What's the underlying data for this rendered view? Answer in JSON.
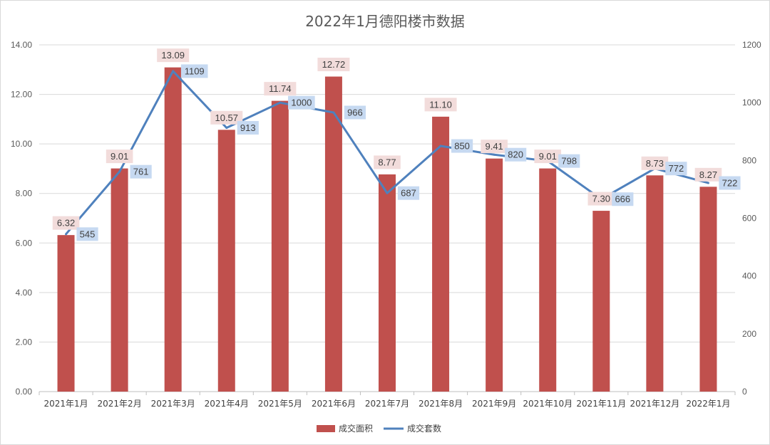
{
  "chart_data": {
    "type": "bar",
    "title": "2022年1月德阳楼市数据",
    "categories": [
      "2021年1月",
      "2021年2月",
      "2021年3月",
      "2021年4月",
      "2021年5月",
      "2021年6月",
      "2021年7月",
      "2021年8月",
      "2021年9月",
      "2021年10月",
      "2021年11月",
      "2021年12月",
      "2022年1月"
    ],
    "series": [
      {
        "name": "成交面积",
        "kind": "bar",
        "axis": "left",
        "color": "#c0504d",
        "label_bg": "#f2dcdb",
        "values": [
          6.32,
          9.01,
          13.09,
          10.57,
          11.74,
          12.72,
          8.77,
          11.1,
          9.41,
          9.01,
          7.3,
          8.73,
          8.27
        ],
        "labels": [
          "6.32",
          "9.01",
          "13.09",
          "10.57",
          "11.74",
          "12.72",
          "8.77",
          "11.10",
          "9.41",
          "9.01",
          "7.30",
          "8.73",
          "8.27"
        ]
      },
      {
        "name": "成交套数",
        "kind": "line",
        "axis": "right",
        "color": "#4f81bd",
        "label_bg": "#c6d9f1",
        "values": [
          545,
          761,
          1109,
          913,
          1000,
          966,
          687,
          850,
          820,
          798,
          666,
          772,
          722
        ],
        "labels": [
          "545",
          "761",
          "1109",
          "913",
          "1000",
          "966",
          "687",
          "850",
          "820",
          "798",
          "666",
          "772",
          "722"
        ]
      }
    ],
    "y_left": {
      "min": 0,
      "max": 14,
      "ticks": [
        "0.00",
        "2.00",
        "4.00",
        "6.00",
        "8.00",
        "10.00",
        "12.00",
        "14.00"
      ]
    },
    "y_right": {
      "min": 0,
      "max": 1200,
      "ticks": [
        "0",
        "200",
        "400",
        "600",
        "800",
        "1000",
        "1200"
      ]
    },
    "grid": true,
    "legend_position": "bottom"
  }
}
